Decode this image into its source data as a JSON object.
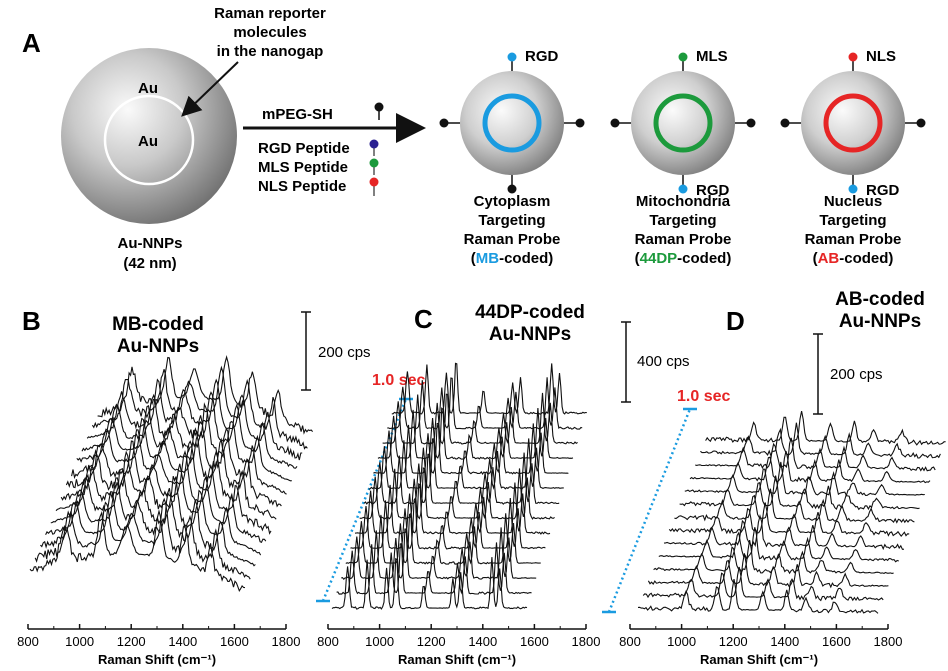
{
  "panel_a": {
    "label": "A",
    "reporter_note": [
      "Raman reporter",
      "molecules",
      "in the nanogap"
    ],
    "core_outer": "Au",
    "core_inner": "Au",
    "particle_name": "Au-NNPs",
    "particle_size": "(42 nm)",
    "arrow_label": "mPEG-SH",
    "reagents": [
      "RGD Peptide",
      "MLS Peptide",
      "NLS Peptide"
    ],
    "probes": [
      {
        "top": "RGD",
        "bottom": "",
        "lines": [
          "Cytoplasm",
          "Targeting",
          "Raman Probe"
        ],
        "code": "MB",
        "code_color": "#1a9be0",
        "ring_color": "#1a9be0"
      },
      {
        "top": "MLS",
        "bottom": "RGD",
        "lines": [
          "Mitochondria",
          "Targeting",
          "Raman Probe"
        ],
        "code": "44DP",
        "code_color": "#1c9a3c",
        "ring_color": "#1c9a3c"
      },
      {
        "top": "NLS",
        "bottom": "RGD",
        "lines": [
          "Nucleus",
          "Targeting",
          "Raman Probe"
        ],
        "code": "AB",
        "code_color": "#e62525",
        "ring_color": "#e62525"
      }
    ],
    "code_suffix": "-coded)",
    "code_prefix": "(",
    "colors": {
      "rgd": "#1a9be0",
      "mls": "#1c9a3c",
      "nls": "#e62525",
      "peg": "#111111",
      "rgd_reagent": "#2a2090"
    }
  },
  "panel_b": {
    "label": "B",
    "title": [
      "MB-coded",
      "Au-NNPs"
    ],
    "scale": "200 cps"
  },
  "panel_c": {
    "label": "C",
    "title": [
      "44DP-coded",
      "Au-NNPs"
    ],
    "scale": "400 cps",
    "time": "1.0 sec"
  },
  "panel_d": {
    "label": "D",
    "title": [
      "AB-coded",
      "Au-NNPs"
    ],
    "scale": "200 cps",
    "time": "1.0 sec"
  },
  "axis": {
    "ticks": [
      "800",
      "1000",
      "1200",
      "1400",
      "1600",
      "1800"
    ],
    "xlabel": "Raman Shift (cm⁻¹)"
  },
  "time_color": "#e62525",
  "arrow_color": "#1a9be0"
}
